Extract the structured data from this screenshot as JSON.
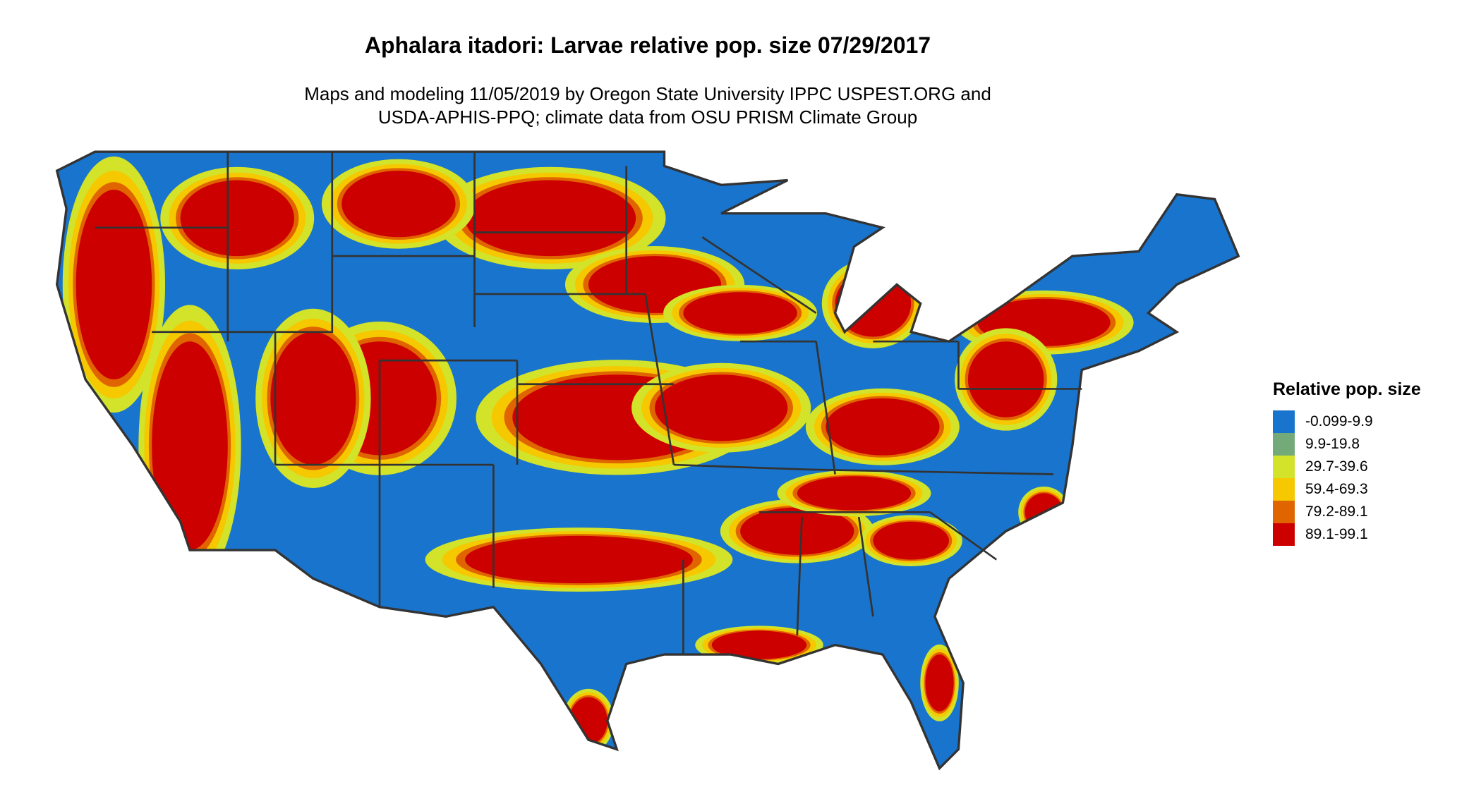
{
  "title": "Aphalara itadori: Larvae relative pop. size 07/29/2017",
  "subtitle_lines": [
    "Maps and modeling 11/05/2019 by Oregon State University IPPC USPEST.ORG and",
    "USDA-APHIS-PPQ; climate data from OSU PRISM Climate Group"
  ],
  "chart_data": {
    "type": "heatmap",
    "map_region": "contiguous United States",
    "legend_title": "Relative pop. size",
    "legend_placement": "right",
    "legend": [
      {
        "label": "-0.099-9.9",
        "color": "#1874cd"
      },
      {
        "label": "9.9-19.8",
        "color": "#74aa7a"
      },
      {
        "label": "29.7-39.6",
        "color": "#d2e32a"
      },
      {
        "label": "59.4-69.3",
        "color": "#f5c800"
      },
      {
        "label": "79.2-89.1",
        "color": "#e06400"
      },
      {
        "label": "89.1-99.1",
        "color": "#cd0000"
      }
    ],
    "state_border_color": "#333333"
  }
}
